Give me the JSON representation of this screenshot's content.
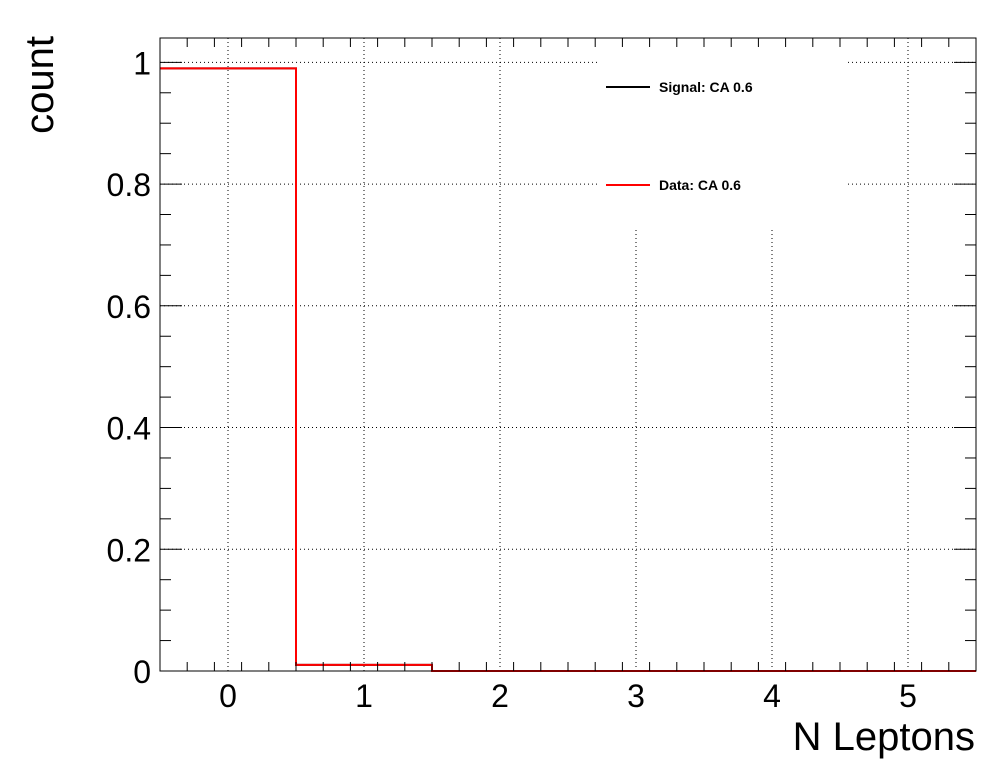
{
  "chart_data": {
    "type": "step",
    "xlabel": "N Leptons",
    "ylabel": "count",
    "xlim": [
      -0.5,
      5.5
    ],
    "ylim": [
      0,
      1.04
    ],
    "xticks": [
      0,
      1,
      2,
      3,
      4,
      5
    ],
    "yticks": [
      0,
      0.2,
      0.4,
      0.6,
      0.8,
      1
    ],
    "ytick_labels": [
      "0",
      "0.2",
      "0.4",
      "0.6",
      "0.8",
      "1"
    ],
    "grid": true,
    "legend_position": "top-right",
    "bin_edges": [
      -0.5,
      0.5,
      1.5,
      2.5,
      3.5,
      4.5,
      5.5
    ],
    "series": [
      {
        "name": "Signal: CA 0.6",
        "color": "#000000",
        "values": [
          0.99,
          0.01,
          0,
          0,
          0,
          0
        ]
      },
      {
        "name": "Data: CA 0.6",
        "color": "#ff0000",
        "values": [
          0.99,
          0.01,
          0,
          0,
          0,
          0
        ]
      }
    ]
  }
}
